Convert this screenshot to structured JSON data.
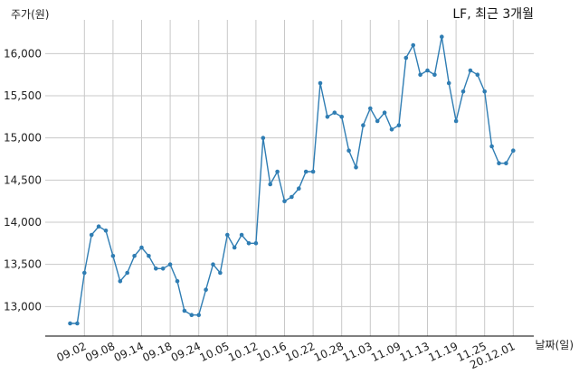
{
  "chart_data": {
    "type": "line",
    "title": "LF, 최근 3개월",
    "ylabel": "주가(원)",
    "xlabel": "날짜(일)",
    "ylim": [
      12650,
      16400
    ],
    "yticks": [
      13000,
      13500,
      14000,
      14500,
      15000,
      15500,
      16000
    ],
    "ytick_labels": [
      "13,000",
      "13,500",
      "14,000",
      "14,500",
      "15,000",
      "15,500",
      "16,000"
    ],
    "xtick_labels": [
      {
        "label": "09.02",
        "index": 2
      },
      {
        "label": "09.08",
        "index": 6
      },
      {
        "label": "09.14",
        "index": 10
      },
      {
        "label": "09.18",
        "index": 14
      },
      {
        "label": "09.24",
        "index": 18
      },
      {
        "label": "10.05",
        "index": 22
      },
      {
        "label": "10.12",
        "index": 26
      },
      {
        "label": "10.16",
        "index": 30
      },
      {
        "label": "10.22",
        "index": 34
      },
      {
        "label": "10.28",
        "index": 38
      },
      {
        "label": "11.03",
        "index": 42
      },
      {
        "label": "11.09",
        "index": 46
      },
      {
        "label": "11.13",
        "index": 50
      },
      {
        "label": "11.19",
        "index": 54
      },
      {
        "label": "11.25",
        "index": 58
      },
      {
        "label": "20.12.01",
        "index": 62
      }
    ],
    "grid": true,
    "color": "#2f7db3",
    "values": [
      12800,
      12800,
      13400,
      13850,
      13950,
      13900,
      13600,
      13300,
      13400,
      13600,
      13700,
      13600,
      13450,
      13450,
      13500,
      13300,
      12950,
      12900,
      12900,
      13200,
      13500,
      13400,
      13850,
      13700,
      13850,
      13750,
      13750,
      15000,
      14450,
      14600,
      14250,
      14300,
      14400,
      14600,
      14600,
      15650,
      15250,
      15300,
      15250,
      14850,
      14650,
      15150,
      15350,
      15200,
      15300,
      15100,
      15150,
      15950,
      16100,
      15750,
      15800,
      15750,
      16200,
      15650,
      15200,
      15550,
      15800,
      15750,
      15550,
      14900,
      14700,
      14700,
      14850
    ]
  }
}
